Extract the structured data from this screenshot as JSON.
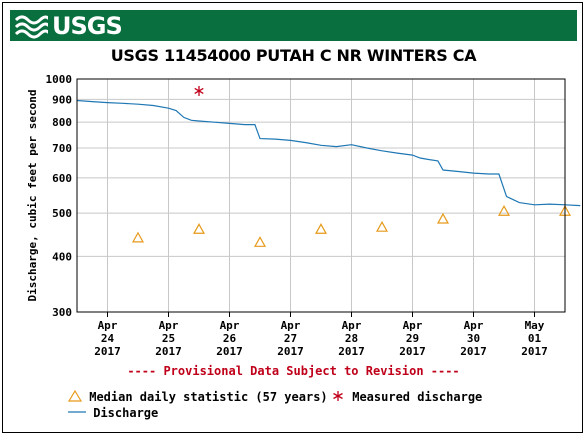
{
  "header": {
    "logo_text": "USGS"
  },
  "chart_data": {
    "type": "line",
    "title": "USGS 11454000 PUTAH C NR WINTERS CA",
    "ylabel": "Discharge, cubic feet per second",
    "xlabel": "",
    "y_scale": "log",
    "ylim": [
      300,
      1000
    ],
    "y_ticks": [
      300,
      400,
      500,
      600,
      700,
      800,
      900,
      1000
    ],
    "x_ticks": [
      {
        "lines": [
          "Apr",
          "24",
          "2017"
        ]
      },
      {
        "lines": [
          "Apr",
          "25",
          "2017"
        ]
      },
      {
        "lines": [
          "Apr",
          "26",
          "2017"
        ]
      },
      {
        "lines": [
          "Apr",
          "27",
          "2017"
        ]
      },
      {
        "lines": [
          "Apr",
          "28",
          "2017"
        ]
      },
      {
        "lines": [
          "Apr",
          "29",
          "2017"
        ]
      },
      {
        "lines": [
          "Apr",
          "30",
          "2017"
        ]
      },
      {
        "lines": [
          "May",
          "01",
          "2017"
        ]
      }
    ],
    "grid": true,
    "annotation": "---- Provisional Data Subject to Revision ----",
    "series": [
      {
        "name": "Discharge",
        "kind": "line",
        "color": "#1f77b4",
        "points": [
          [
            "2017-04-23 12:00",
            895
          ],
          [
            "2017-04-23 18:00",
            890
          ],
          [
            "2017-04-24 00:00",
            885
          ],
          [
            "2017-04-24 06:00",
            882
          ],
          [
            "2017-04-24 12:00",
            878
          ],
          [
            "2017-04-24 18:00",
            872
          ],
          [
            "2017-04-25 00:00",
            860
          ],
          [
            "2017-04-25 03:00",
            850
          ],
          [
            "2017-04-25 06:00",
            820
          ],
          [
            "2017-04-25 09:00",
            808
          ],
          [
            "2017-04-25 12:00",
            805
          ],
          [
            "2017-04-25 18:00",
            800
          ],
          [
            "2017-04-26 00:00",
            795
          ],
          [
            "2017-04-26 06:00",
            790
          ],
          [
            "2017-04-26 10:00",
            790
          ],
          [
            "2017-04-26 12:00",
            735
          ],
          [
            "2017-04-26 18:00",
            733
          ],
          [
            "2017-04-27 00:00",
            728
          ],
          [
            "2017-04-27 06:00",
            720
          ],
          [
            "2017-04-27 12:00",
            710
          ],
          [
            "2017-04-27 18:00",
            705
          ],
          [
            "2017-04-28 00:00",
            712
          ],
          [
            "2017-04-28 06:00",
            700
          ],
          [
            "2017-04-28 12:00",
            690
          ],
          [
            "2017-04-28 18:00",
            682
          ],
          [
            "2017-04-29 00:00",
            675
          ],
          [
            "2017-04-29 03:00",
            665
          ],
          [
            "2017-04-29 06:00",
            660
          ],
          [
            "2017-04-29 10:00",
            655
          ],
          [
            "2017-04-29 12:00",
            625
          ],
          [
            "2017-04-29 18:00",
            620
          ],
          [
            "2017-04-30 00:00",
            615
          ],
          [
            "2017-04-30 06:00",
            612
          ],
          [
            "2017-04-30 10:00",
            612
          ],
          [
            "2017-04-30 13:00",
            545
          ],
          [
            "2017-04-30 18:00",
            528
          ],
          [
            "2017-05-01 00:00",
            522
          ],
          [
            "2017-05-01 06:00",
            524
          ],
          [
            "2017-05-01 12:00",
            522
          ],
          [
            "2017-05-01 18:00",
            520
          ]
        ]
      },
      {
        "name": "Median daily statistic (57 years)",
        "kind": "triangle",
        "color": "#e69a1b",
        "points": [
          [
            "2017-04-24",
            440
          ],
          [
            "2017-04-25",
            460
          ],
          [
            "2017-04-26",
            430
          ],
          [
            "2017-04-27",
            460
          ],
          [
            "2017-04-28",
            465
          ],
          [
            "2017-04-29",
            485
          ],
          [
            "2017-04-30",
            505
          ],
          [
            "2017-05-01",
            505
          ]
        ]
      },
      {
        "name": "Measured discharge",
        "kind": "asterisk",
        "color": "#c0001a",
        "points": [
          [
            "2017-04-25",
            940
          ]
        ]
      }
    ],
    "legend": [
      {
        "label": "Median daily statistic (57 years)",
        "kind": "triangle",
        "color": "#e69a1b"
      },
      {
        "label": "Measured discharge",
        "kind": "asterisk",
        "color": "#c0001a"
      },
      {
        "label": "Discharge",
        "kind": "line",
        "color": "#1f77b4"
      }
    ]
  }
}
